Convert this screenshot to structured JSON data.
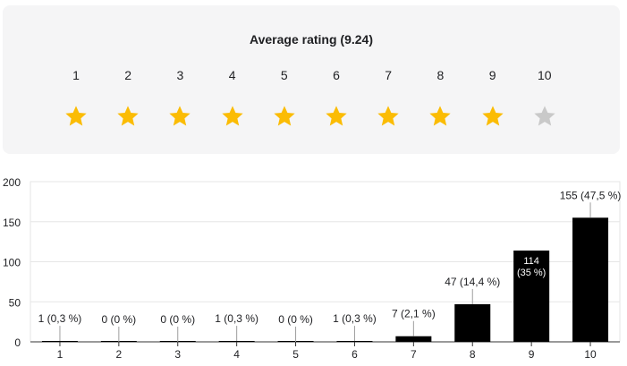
{
  "rating": {
    "title": "Average rating (9.24)",
    "filled_color": "#fbbc04",
    "empty_color": "#c9c9c9",
    "filled_count": 9,
    "scale": [
      "1",
      "2",
      "3",
      "4",
      "5",
      "6",
      "7",
      "8",
      "9",
      "10"
    ]
  },
  "chart_data": {
    "type": "bar",
    "categories": [
      "1",
      "2",
      "3",
      "4",
      "5",
      "6",
      "7",
      "8",
      "9",
      "10"
    ],
    "values": [
      1,
      0,
      0,
      1,
      0,
      1,
      7,
      47,
      114,
      155
    ],
    "labels": [
      "1 (0,3 %)",
      "0 (0 %)",
      "0 (0 %)",
      "1 (0,3 %)",
      "0 (0 %)",
      "1 (0,3 %)",
      "7 (2,1 %)",
      "47 (14,4 %)",
      "114\n(35 %)",
      "155 (47,5 %)"
    ],
    "y_ticks": [
      "0",
      "50",
      "100",
      "150",
      "200"
    ],
    "ylim": [
      0,
      200
    ],
    "bar_color": "#000000",
    "grid": true
  }
}
